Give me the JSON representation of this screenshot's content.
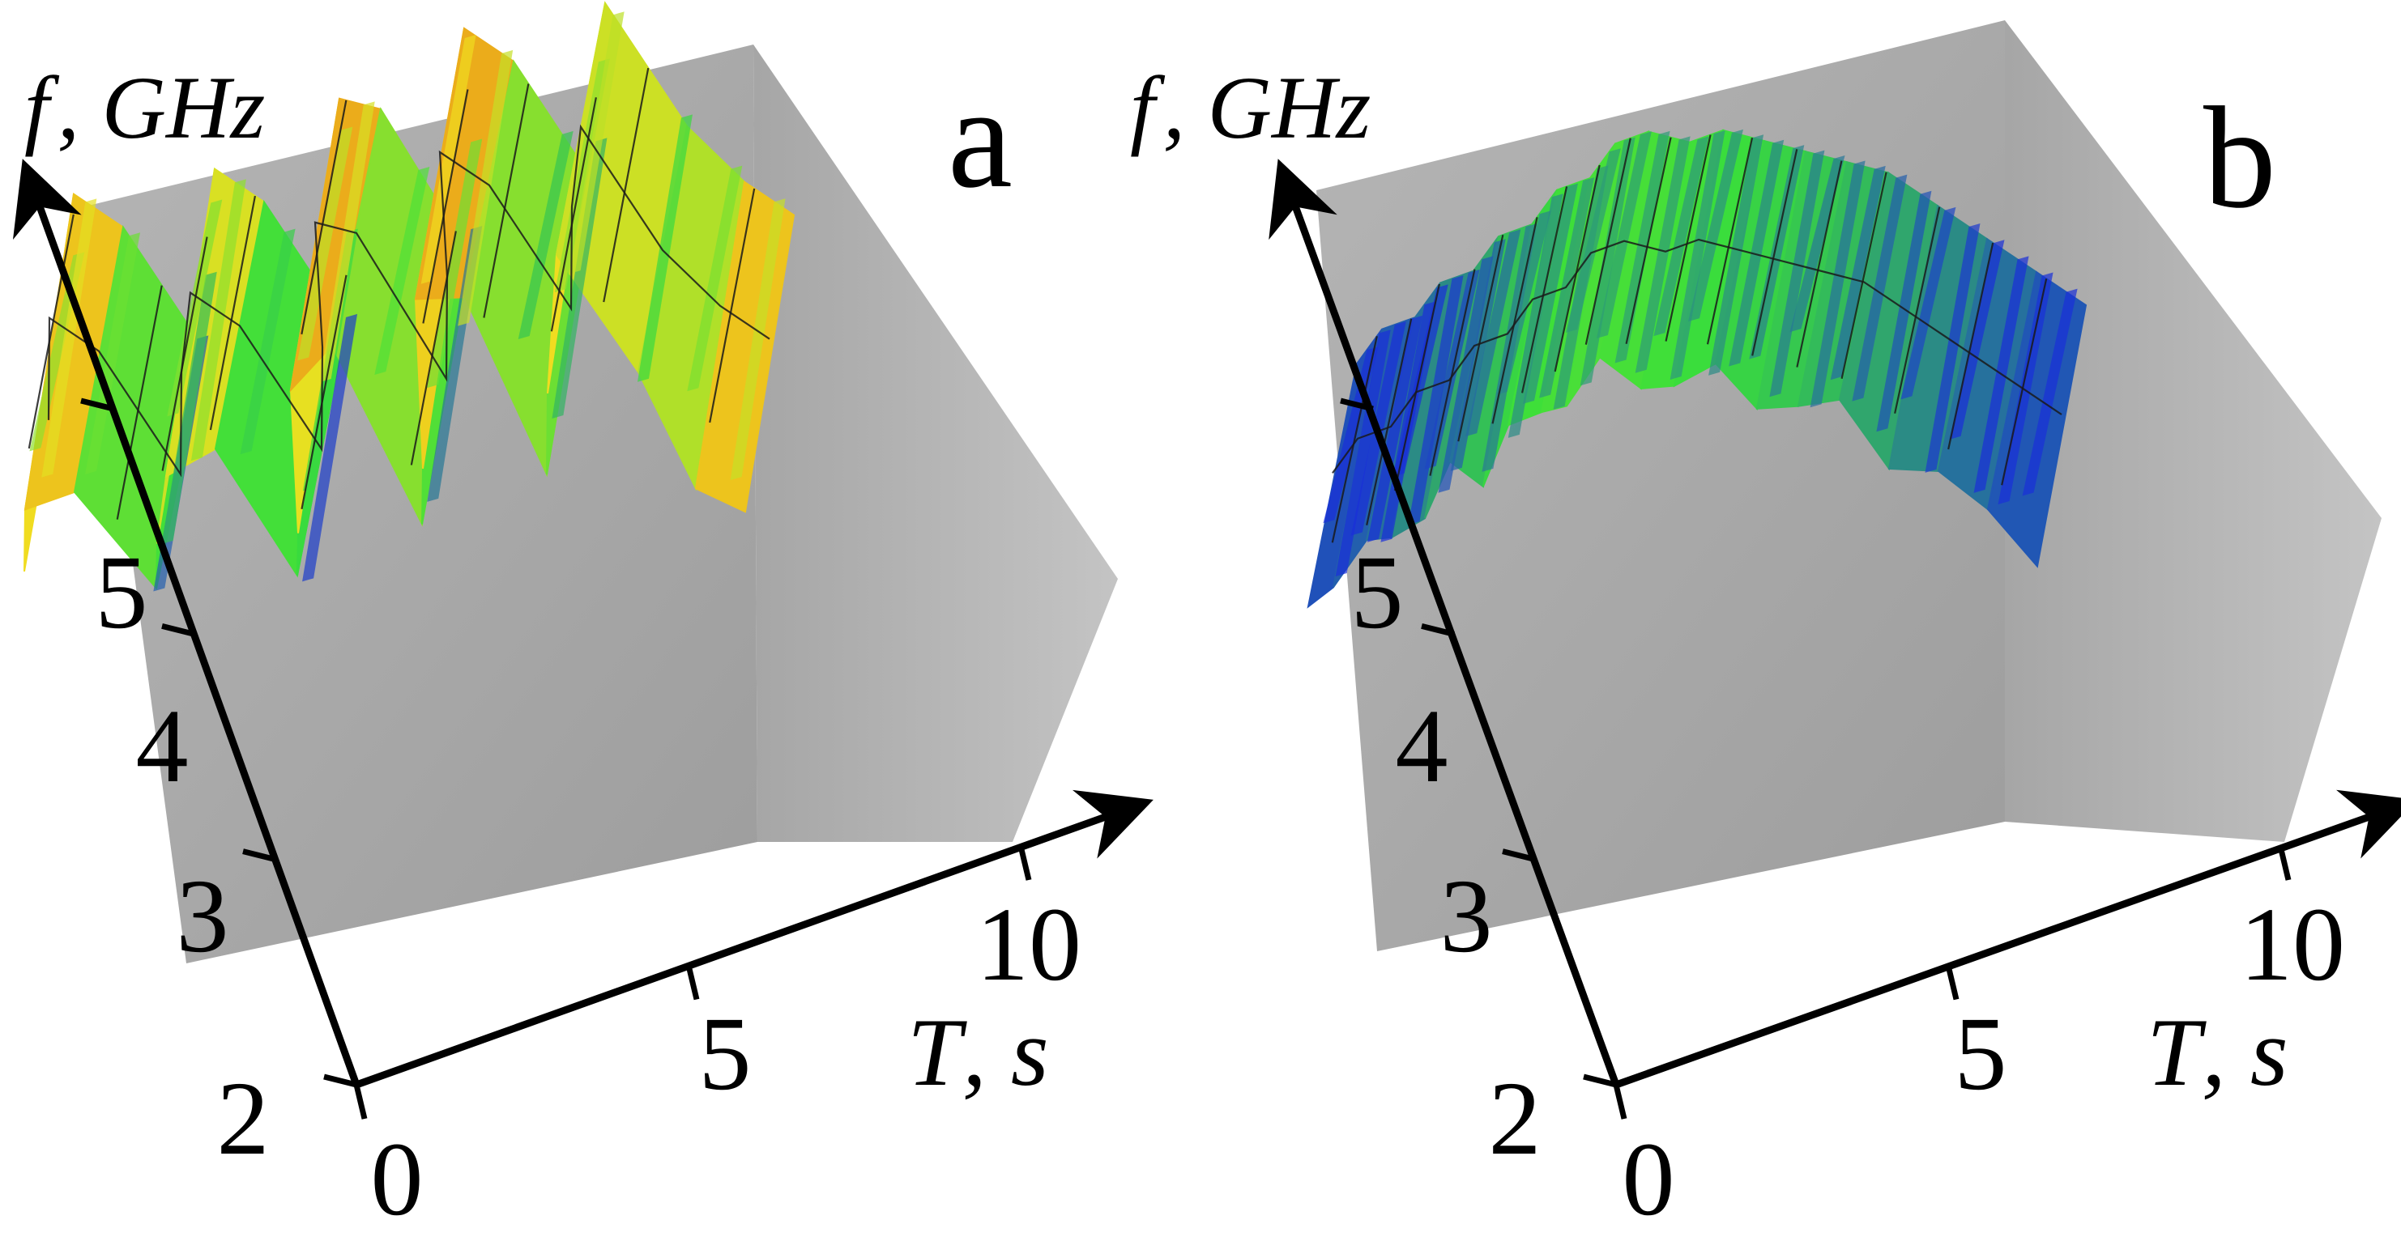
{
  "colors": {
    "wall": "#a8a8a8",
    "wall_dark": "#9a9a9a",
    "axis": "#000000",
    "low": "#1a2fd8",
    "mid": "#3adf3a",
    "high": "#f0e020",
    "peak": "#e04010"
  },
  "chart_data": [
    {
      "panel_letter": "a",
      "type": "surface",
      "y_axis_label_var": "f",
      "y_axis_label_unit": ", GHz",
      "x_axis_label_var": "T",
      "x_axis_label_unit": ", s",
      "y_ticks": [
        "2",
        "3",
        "4",
        "5"
      ],
      "x_ticks": [
        "0",
        "5",
        "10"
      ],
      "x_range": [
        0,
        10
      ],
      "y_range": [
        2,
        5.5
      ],
      "fringe_count": 24,
      "gridline_count": 12,
      "surface": {
        "T": [
          0,
          0.5,
          1,
          1.5,
          2,
          2.5,
          3,
          3.5,
          4,
          4.5,
          5,
          5.5,
          6,
          6.5,
          7,
          7.5,
          8,
          8.5,
          9,
          9.5,
          10
        ],
        "f": [
          5.5,
          5.9,
          5.7,
          5.1,
          5.5,
          5.8,
          5.6,
          5.0,
          5.4,
          5.9,
          5.8,
          5.1,
          5.5,
          6.0,
          5.8,
          5.2,
          5.6,
          5.9,
          5.3,
          5.0,
          4.8
        ],
        "color": [
          0.5,
          0.85,
          0.6,
          0.2,
          0.5,
          0.7,
          0.55,
          0.15,
          0.5,
          0.8,
          0.75,
          0.2,
          0.55,
          0.85,
          0.7,
          0.25,
          0.6,
          0.75,
          0.45,
          0.65,
          0.8
        ]
      }
    },
    {
      "panel_letter": "b",
      "type": "surface",
      "y_axis_label_var": "f",
      "y_axis_label_unit": ", GHz",
      "x_axis_label_var": "T",
      "x_axis_label_unit": ", s",
      "y_ticks": [
        "2",
        "3",
        "4",
        "5"
      ],
      "x_ticks": [
        "0",
        "5",
        "10"
      ],
      "x_range": [
        0,
        10
      ],
      "y_range": [
        2,
        5.5
      ],
      "fringe_count": 40,
      "gridline_count": 18,
      "surface": {
        "T": [
          0,
          0.5,
          1,
          1.5,
          2,
          2.5,
          3,
          3.5,
          4,
          4.5,
          5,
          5.5,
          6,
          6.5,
          7,
          7.5,
          8,
          8.5,
          9,
          9.5,
          10
        ],
        "f": [
          5.2,
          5.3,
          5.3,
          5.4,
          5.4,
          5.5,
          5.5,
          5.6,
          5.6,
          5.7,
          5.7,
          5.6,
          5.6,
          5.5,
          5.4,
          5.3,
          5.2,
          5.0,
          4.8,
          4.6,
          4.4
        ],
        "color": [
          0.05,
          0.08,
          0.1,
          0.15,
          0.2,
          0.25,
          0.3,
          0.33,
          0.35,
          0.36,
          0.36,
          0.35,
          0.34,
          0.32,
          0.3,
          0.28,
          0.25,
          0.2,
          0.15,
          0.1,
          0.05
        ]
      }
    }
  ]
}
